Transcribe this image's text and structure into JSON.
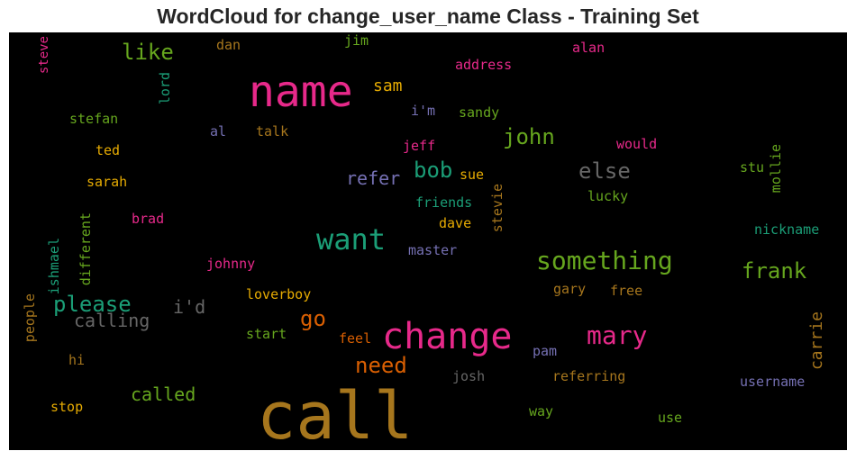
{
  "title": "WordCloud for change_user_name Class - Training Set",
  "chart_data": {
    "type": "wordcloud",
    "background": "#000000",
    "colormap_colors": [
      "#1b9e77",
      "#d95f02",
      "#7570b3",
      "#e7298a",
      "#66a61e",
      "#e6ab02",
      "#a6761d",
      "#666666"
    ],
    "words": [
      {
        "text": "call",
        "color": "#a6761d"
      },
      {
        "text": "name",
        "color": "#e7298a"
      },
      {
        "text": "change",
        "color": "#e7298a"
      },
      {
        "text": "want",
        "color": "#1b9e77"
      },
      {
        "text": "something",
        "color": "#66a61e"
      },
      {
        "text": "mary",
        "color": "#e7298a"
      },
      {
        "text": "like",
        "color": "#66a61e"
      },
      {
        "text": "please",
        "color": "#1b9e77"
      },
      {
        "text": "john",
        "color": "#66a61e"
      },
      {
        "text": "frank",
        "color": "#66a61e"
      },
      {
        "text": "else",
        "color": "#666666"
      },
      {
        "text": "bob",
        "color": "#1b9e77"
      },
      {
        "text": "need",
        "color": "#d95f02"
      },
      {
        "text": "go",
        "color": "#d95f02"
      },
      {
        "text": "calling",
        "color": "#666666"
      },
      {
        "text": "i'd",
        "color": "#666666"
      },
      {
        "text": "called",
        "color": "#66a61e"
      },
      {
        "text": "refer",
        "color": "#7570b3"
      },
      {
        "text": "sam",
        "color": "#e6ab02"
      },
      {
        "text": "carrie",
        "color": "#a6761d"
      },
      {
        "text": "steve",
        "color": "#e7298a"
      },
      {
        "text": "dan",
        "color": "#a6761d"
      },
      {
        "text": "jim",
        "color": "#66a61e"
      },
      {
        "text": "alan",
        "color": "#e7298a"
      },
      {
        "text": "address",
        "color": "#e7298a"
      },
      {
        "text": "lord",
        "color": "#1b9e77"
      },
      {
        "text": "i'm",
        "color": "#7570b3"
      },
      {
        "text": "sandy",
        "color": "#66a61e"
      },
      {
        "text": "stefan",
        "color": "#66a61e"
      },
      {
        "text": "al",
        "color": "#7570b3"
      },
      {
        "text": "talk",
        "color": "#a6761d"
      },
      {
        "text": "jeff",
        "color": "#e7298a"
      },
      {
        "text": "would",
        "color": "#e7298a"
      },
      {
        "text": "ted",
        "color": "#e6ab02"
      },
      {
        "text": "sue",
        "color": "#e6ab02"
      },
      {
        "text": "stu",
        "color": "#66a61e"
      },
      {
        "text": "mollie",
        "color": "#66a61e"
      },
      {
        "text": "sarah",
        "color": "#e6ab02"
      },
      {
        "text": "friends",
        "color": "#1b9e77"
      },
      {
        "text": "lucky",
        "color": "#66a61e"
      },
      {
        "text": "stevie",
        "color": "#a6761d"
      },
      {
        "text": "brad",
        "color": "#e7298a"
      },
      {
        "text": "dave",
        "color": "#e6ab02"
      },
      {
        "text": "nickname",
        "color": "#1b9e77"
      },
      {
        "text": "ishmael",
        "color": "#1b9e77"
      },
      {
        "text": "different",
        "color": "#66a61e"
      },
      {
        "text": "master",
        "color": "#7570b3"
      },
      {
        "text": "johnny",
        "color": "#e7298a"
      },
      {
        "text": "people",
        "color": "#a6761d"
      },
      {
        "text": "gary",
        "color": "#a6761d"
      },
      {
        "text": "free",
        "color": "#a6761d"
      },
      {
        "text": "loverboy",
        "color": "#e6ab02"
      },
      {
        "text": "start",
        "color": "#66a61e"
      },
      {
        "text": "feel",
        "color": "#d95f02"
      },
      {
        "text": "pam",
        "color": "#7570b3"
      },
      {
        "text": "hi",
        "color": "#a6761d"
      },
      {
        "text": "josh",
        "color": "#666666"
      },
      {
        "text": "referring",
        "color": "#a6761d"
      },
      {
        "text": "username",
        "color": "#7570b3"
      },
      {
        "text": "stop",
        "color": "#e6ab02"
      },
      {
        "text": "way",
        "color": "#66a61e"
      },
      {
        "text": "use",
        "color": "#66a61e"
      }
    ]
  }
}
